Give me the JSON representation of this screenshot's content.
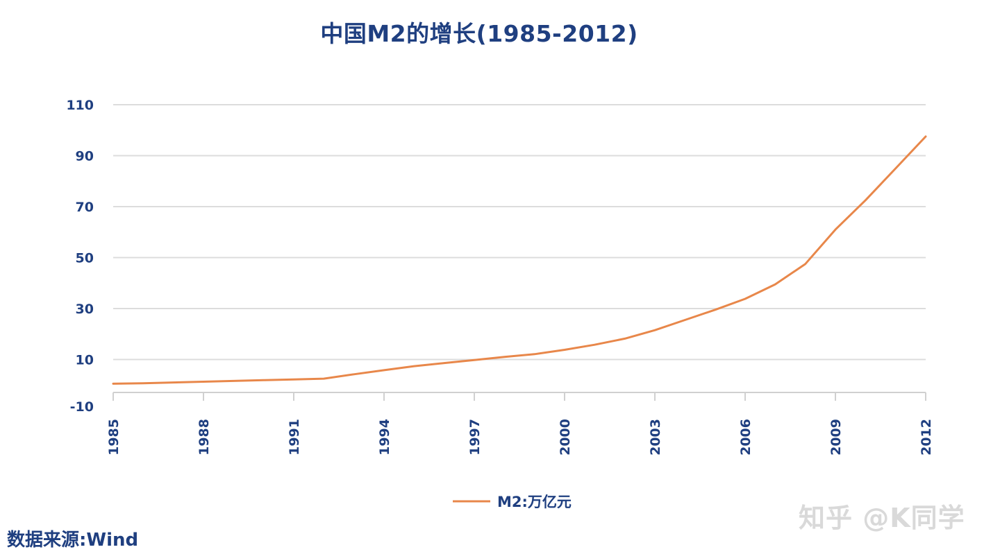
{
  "chart_data": {
    "type": "line",
    "title": "中国M2的增长(1985-2012)",
    "x_ticks": [
      1985,
      1988,
      1991,
      1994,
      1997,
      2000,
      2003,
      2006,
      2009,
      2012
    ],
    "y_ticks": [
      -10,
      10,
      30,
      50,
      70,
      90,
      110
    ],
    "xlim": [
      1985,
      2012
    ],
    "ylim": [
      -10,
      110
    ],
    "grid": true,
    "legend_position": "bottom-center",
    "series": [
      {
        "name": "M2:万亿元",
        "color": "#e8874a",
        "x": [
          1985,
          1986,
          1987,
          1988,
          1989,
          1990,
          1991,
          1992,
          1993,
          1994,
          1995,
          1996,
          1997,
          1998,
          1999,
          2000,
          2001,
          2002,
          2003,
          2004,
          2005,
          2006,
          2007,
          2008,
          2009,
          2010,
          2011,
          2012
        ],
        "values": [
          0.5,
          0.7,
          1.0,
          1.3,
          1.6,
          1.9,
          2.2,
          2.5,
          4.2,
          5.8,
          7.4,
          8.6,
          9.8,
          11.0,
          12.1,
          13.8,
          15.8,
          18.2,
          21.5,
          25.5,
          29.5,
          33.8,
          39.5,
          47.5,
          61.0,
          72.5,
          85.0,
          97.5
        ]
      }
    ],
    "source_note": "数据来源:Wind",
    "watermark": "知乎 @K同学"
  }
}
